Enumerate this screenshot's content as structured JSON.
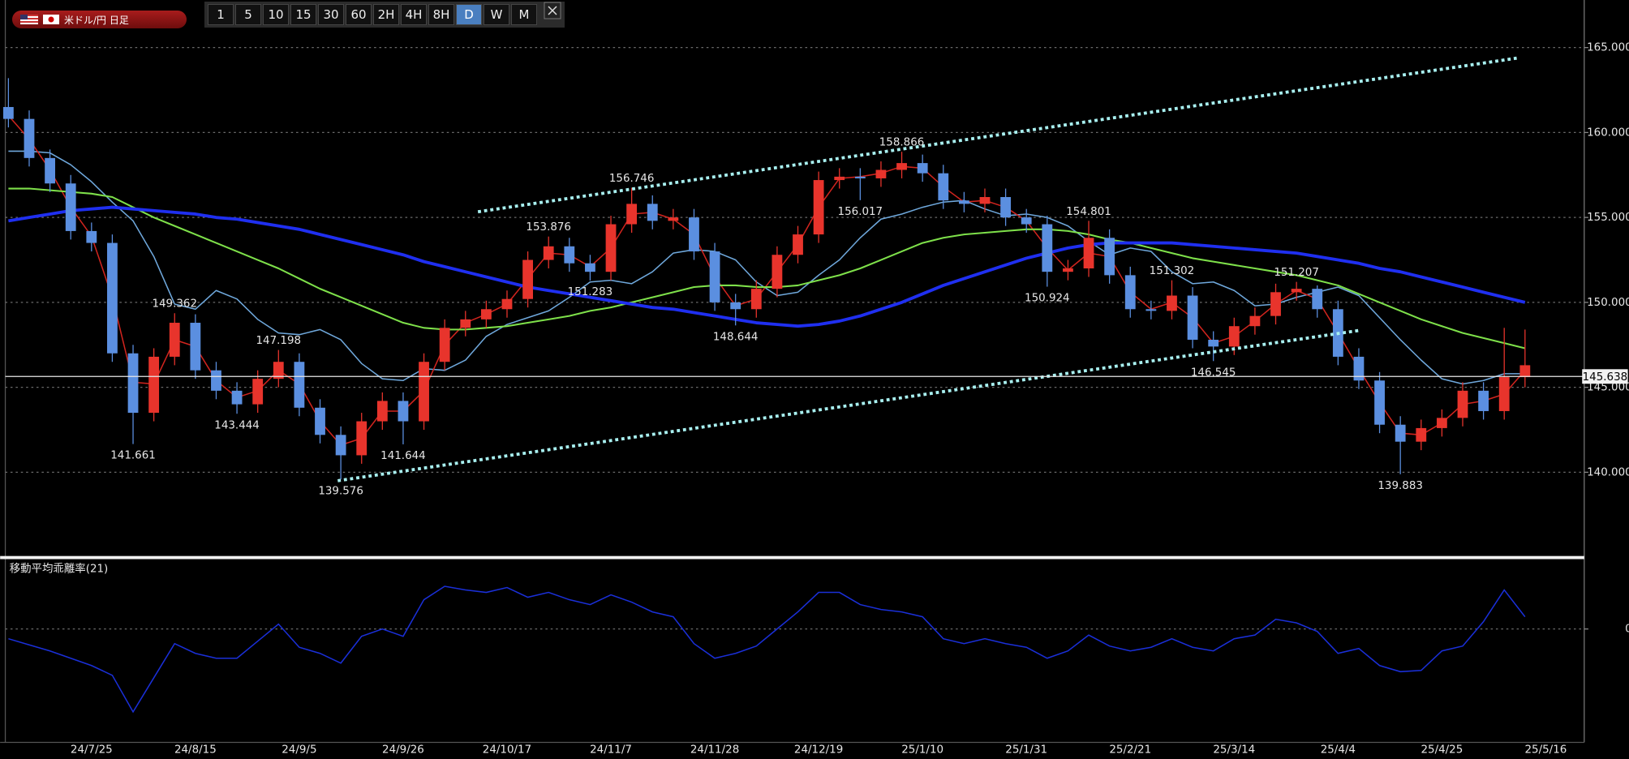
{
  "toolbar": {
    "symbol": "米ドル/円 日足",
    "timeframes": [
      "1",
      "5",
      "10",
      "15",
      "30",
      "60",
      "2H",
      "4H",
      "8H",
      "D",
      "W",
      "M"
    ],
    "active": "D"
  },
  "chart_data": [
    {
      "type": "candlestick",
      "open": [
        161.5,
        160.8,
        158.5,
        157.0,
        154.2,
        153.5,
        147.0,
        143.5,
        146.8,
        148.8,
        146.0,
        144.8,
        144.0,
        145.5,
        146.5,
        143.8,
        142.2,
        141.0,
        143.0,
        144.2,
        143.0,
        146.5,
        148.5,
        149.0,
        149.6,
        150.2,
        152.5,
        153.3,
        152.3,
        151.8,
        154.6,
        155.8,
        154.8,
        155.0,
        153.0,
        150.0,
        149.6,
        150.8,
        152.8,
        154.0,
        157.2,
        157.4,
        157.3,
        157.8,
        158.2,
        157.6,
        156.0,
        155.8,
        156.2,
        155.0,
        154.6,
        151.8,
        152.0,
        153.8,
        151.6,
        149.6,
        149.5,
        150.4,
        147.8,
        147.4,
        148.6,
        149.2,
        150.6,
        150.8,
        149.6,
        146.8,
        145.4,
        142.8,
        141.8,
        142.6,
        143.2,
        144.8,
        143.6,
        145.6,
        null
      ],
      "high": [
        163.2,
        161.3,
        159.0,
        157.5,
        154.7,
        154.0,
        147.5,
        147.3,
        149.362,
        149.3,
        146.5,
        145.3,
        146.0,
        147.198,
        147.0,
        144.3,
        142.7,
        143.5,
        144.7,
        144.7,
        147.0,
        149.0,
        149.5,
        150.1,
        150.7,
        153.0,
        153.876,
        153.8,
        152.8,
        155.1,
        156.746,
        156.3,
        155.5,
        155.5,
        153.5,
        150.5,
        151.3,
        153.3,
        154.5,
        157.7,
        157.9,
        157.9,
        158.3,
        158.866,
        158.7,
        158.1,
        156.5,
        156.7,
        156.7,
        155.5,
        155.1,
        152.5,
        154.801,
        154.3,
        152.1,
        150.1,
        151.302,
        150.9,
        148.3,
        149.1,
        149.7,
        151.1,
        151.207,
        151.0,
        150.1,
        147.3,
        145.9,
        143.3,
        143.1,
        143.7,
        145.3,
        145.3,
        148.5,
        148.4,
        null
      ],
      "low": [
        160.3,
        158.0,
        156.5,
        153.7,
        153.0,
        146.5,
        141.661,
        143.0,
        146.3,
        145.5,
        144.3,
        143.444,
        143.5,
        145.0,
        143.3,
        141.7,
        139.576,
        140.5,
        142.5,
        141.644,
        142.5,
        146.0,
        148.0,
        148.5,
        149.1,
        149.7,
        152.0,
        151.8,
        151.283,
        151.3,
        154.1,
        154.3,
        154.3,
        152.5,
        149.5,
        148.644,
        149.1,
        150.3,
        152.3,
        153.5,
        156.7,
        156.017,
        156.8,
        157.3,
        157.1,
        155.5,
        155.3,
        155.3,
        154.5,
        154.1,
        150.924,
        151.3,
        151.5,
        151.1,
        149.1,
        149.0,
        149.0,
        147.3,
        146.545,
        146.9,
        148.1,
        148.7,
        150.1,
        149.1,
        146.3,
        144.9,
        142.3,
        139.883,
        141.3,
        142.1,
        142.7,
        143.1,
        143.1,
        145.0,
        null
      ],
      "close": [
        160.8,
        158.5,
        157.0,
        154.2,
        153.5,
        147.0,
        143.5,
        146.8,
        148.8,
        146.0,
        144.8,
        144.0,
        145.5,
        146.5,
        143.8,
        142.2,
        141.0,
        143.0,
        144.2,
        143.0,
        146.5,
        148.5,
        149.0,
        149.6,
        150.2,
        152.5,
        153.3,
        152.3,
        151.8,
        154.6,
        155.8,
        154.8,
        155.0,
        153.0,
        150.0,
        149.6,
        150.8,
        152.8,
        154.0,
        157.2,
        157.4,
        157.3,
        157.8,
        158.2,
        157.6,
        156.0,
        155.8,
        156.2,
        155.0,
        154.6,
        151.8,
        152.0,
        153.8,
        151.6,
        149.6,
        149.5,
        150.4,
        147.8,
        147.4,
        148.6,
        149.2,
        150.6,
        150.8,
        149.6,
        146.8,
        145.4,
        142.8,
        141.8,
        142.6,
        143.2,
        144.8,
        143.6,
        145.6,
        146.3,
        null
      ],
      "up_color": "#e8342c",
      "down_color": "#5b8fe0",
      "lines": [
        {
          "color": "#6fa8dc",
          "values": [
            158.9,
            158.9,
            158.8,
            158.1,
            157.1,
            155.9,
            154.8,
            152.7,
            149.9,
            149.6,
            150.7,
            150.2,
            149.0,
            148.2,
            148.1,
            148.4,
            147.8,
            146.4,
            145.5,
            145.4,
            146.1,
            146.0,
            146.6,
            148.0,
            148.7,
            149.1,
            149.5,
            150.3,
            151.2,
            151.3,
            151.1,
            151.8,
            152.9,
            153.1,
            153.0,
            152.5,
            151.2,
            150.4,
            150.6,
            151.6,
            152.5,
            153.8,
            154.9,
            155.2,
            155.6,
            155.9,
            156.0,
            155.5,
            155.1,
            155.2,
            155.0,
            154.5,
            153.6,
            152.8,
            153.2,
            153.0,
            151.8,
            151.1,
            151.2,
            150.7,
            149.8,
            149.9,
            150.3,
            150.6,
            150.9,
            150.4,
            149.1,
            147.8,
            146.6,
            145.5,
            145.2,
            145.4,
            145.8,
            145.8,
            null
          ]
        },
        {
          "color": "#d0241e",
          "values": [
            161.0,
            159.6,
            157.8,
            155.6,
            153.9,
            150.3,
            145.3,
            145.2,
            147.8,
            147.4,
            145.4,
            144.4,
            144.8,
            146.0,
            145.2,
            143.0,
            141.6,
            142.0,
            143.6,
            143.6,
            144.8,
            147.5,
            148.8,
            149.3,
            149.9,
            151.4,
            152.9,
            152.8,
            152.1,
            153.2,
            155.2,
            155.3,
            154.9,
            154.0,
            151.5,
            149.8,
            150.2,
            151.8,
            153.4,
            155.6,
            157.3,
            157.4,
            157.6,
            158.0,
            157.9,
            156.8,
            155.9,
            156.0,
            155.6,
            154.8,
            153.2,
            151.9,
            152.9,
            152.7,
            150.6,
            149.6,
            150.0,
            149.1,
            147.6,
            148.0,
            148.9,
            149.9,
            150.7,
            150.2,
            148.2,
            146.1,
            144.1,
            142.3,
            142.2,
            142.9,
            144.0,
            144.2,
            144.6,
            146.0,
            null
          ]
        },
        {
          "color": "#7ee04a",
          "values": [
            156.7,
            156.7,
            156.6,
            156.5,
            156.4,
            156.2,
            155.6,
            155.0,
            154.5,
            154.0,
            153.5,
            153.0,
            152.5,
            152.0,
            151.4,
            150.8,
            150.3,
            149.8,
            149.3,
            148.8,
            148.5,
            148.4,
            148.4,
            148.5,
            148.6,
            148.8,
            149.0,
            149.2,
            149.5,
            149.7,
            150.0,
            150.3,
            150.6,
            150.9,
            151.0,
            151.0,
            150.9,
            150.9,
            151.0,
            151.3,
            151.6,
            152.0,
            152.5,
            153.0,
            153.5,
            153.8,
            154.0,
            154.1,
            154.2,
            154.3,
            154.3,
            154.2,
            154.0,
            153.7,
            153.5,
            153.2,
            152.9,
            152.6,
            152.4,
            152.2,
            152.0,
            151.8,
            151.6,
            151.3,
            151.0,
            150.5,
            150.0,
            149.5,
            149.0,
            148.6,
            148.2,
            147.9,
            147.6,
            147.3,
            null
          ]
        },
        {
          "color": "#1f2ff0",
          "values": [
            154.8,
            155.0,
            155.2,
            155.4,
            155.5,
            155.6,
            155.5,
            155.4,
            155.3,
            155.2,
            155.0,
            154.9,
            154.7,
            154.5,
            154.3,
            154.0,
            153.7,
            153.4,
            153.1,
            152.8,
            152.4,
            152.1,
            151.8,
            151.5,
            151.2,
            150.9,
            150.7,
            150.5,
            150.3,
            150.1,
            149.9,
            149.7,
            149.6,
            149.4,
            149.2,
            149.0,
            148.8,
            148.7,
            148.6,
            148.7,
            148.9,
            149.2,
            149.6,
            150.0,
            150.5,
            151.0,
            151.4,
            151.8,
            152.2,
            152.6,
            152.9,
            153.2,
            153.4,
            153.5,
            153.5,
            153.5,
            153.5,
            153.4,
            153.3,
            153.2,
            153.1,
            153.0,
            152.9,
            152.7,
            152.5,
            152.3,
            152.0,
            151.8,
            151.5,
            151.2,
            150.9,
            150.6,
            150.3,
            150.0,
            null
          ]
        }
      ],
      "ylim": [
        135.1,
        167.8
      ],
      "yticks": [
        {
          "value": 140,
          "label": "140.000"
        },
        {
          "value": 145,
          "label": "145.000"
        },
        {
          "value": 150,
          "label": "150.000"
        },
        {
          "value": 155,
          "label": "155.000"
        },
        {
          "value": 160,
          "label": "160.000"
        },
        {
          "value": 165,
          "label": "165.000"
        }
      ],
      "grid": true,
      "current_price": 145.638,
      "peak_labels": [
        149.362,
        147.198,
        153.876,
        156.746,
        158.866,
        154.801,
        151.302,
        151.207
      ],
      "trough_labels": [
        141.661,
        143.444,
        139.576,
        141.644,
        151.283,
        148.644,
        156.017,
        150.924,
        146.545,
        139.883
      ]
    },
    {
      "type": "line",
      "title": "移動平均乖離率(21)",
      "categories": [
        null,
        null,
        null,
        null,
        "24/7/25",
        null,
        null,
        null,
        null,
        "24/8/15",
        null,
        null,
        null,
        null,
        "24/9/5",
        null,
        null,
        null,
        null,
        "24/9/26",
        null,
        null,
        null,
        null,
        "24/10/17",
        null,
        null,
        null,
        null,
        "24/11/7",
        null,
        null,
        null,
        null,
        "24/11/28",
        null,
        null,
        null,
        null,
        "24/12/19",
        null,
        null,
        null,
        null,
        "25/1/10",
        null,
        null,
        null,
        null,
        "25/1/31",
        null,
        null,
        null,
        null,
        "25/2/21",
        null,
        null,
        null,
        null,
        "25/3/14",
        null,
        null,
        null,
        null,
        "25/4/4",
        null,
        null,
        null,
        null,
        "25/4/25",
        null,
        null,
        null,
        null,
        "25/5/16"
      ],
      "series": [
        {
          "color": "#1a2fd8",
          "values": [
            -0.8,
            -1.3,
            -1.8,
            -2.4,
            -3.0,
            -3.8,
            -6.8,
            -4.0,
            -1.2,
            -2.0,
            -2.4,
            -2.4,
            -1.0,
            0.4,
            -1.5,
            -2.0,
            -2.8,
            -0.6,
            0.0,
            -0.6,
            2.4,
            3.5,
            3.2,
            3.0,
            3.4,
            2.6,
            3.0,
            2.4,
            2.0,
            2.8,
            2.2,
            1.4,
            1.0,
            -1.2,
            -2.4,
            -2.0,
            -1.4,
            0.0,
            1.4,
            3.0,
            3.0,
            2.0,
            1.6,
            1.4,
            1.0,
            -0.8,
            -1.2,
            -0.8,
            -1.2,
            -1.5,
            -2.4,
            -1.8,
            -0.5,
            -1.4,
            -1.8,
            -1.5,
            -0.8,
            -1.5,
            -1.8,
            -0.8,
            -0.5,
            0.8,
            0.5,
            -0.2,
            -2.0,
            -1.6,
            -3.0,
            -3.5,
            -3.4,
            -1.8,
            -1.4,
            0.6,
            3.2,
            1.0,
            null
          ]
        }
      ],
      "ylim": [
        -9.3,
        5.6
      ],
      "yticks": [
        0
      ],
      "grid": true
    }
  ]
}
